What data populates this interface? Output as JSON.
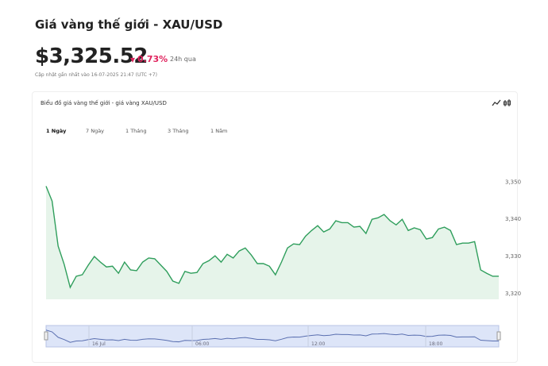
{
  "header": {
    "title": "Giá vàng thế giới - XAU/USD",
    "price": "$3,325.52",
    "change": "0.73%",
    "period": "24h qua",
    "updated": "Cập nhật gần nhất vào 16-07-2025 21:47 (UTC +7)"
  },
  "card": {
    "title": "Biểu đồ giá vàng thế giới - giá vàng XAU/USD",
    "tabs": [
      "1 Ngày",
      "7 Ngày",
      "1 Tháng",
      "3 Tháng",
      "1 Năm"
    ]
  },
  "chart_data": {
    "type": "area",
    "color": "#2f9e5c",
    "fill": "#e6f4ea",
    "values": [
      3348.9,
      3344.9,
      3332.8,
      3327.9,
      3321.7,
      3324.7,
      3325.1,
      3327.7,
      3330.0,
      3328.5,
      3327.2,
      3327.4,
      3325.5,
      3328.5,
      3326.4,
      3326.2,
      3328.5,
      3329.6,
      3329.4,
      3327.7,
      3326.0,
      3323.4,
      3322.8,
      3326.0,
      3325.5,
      3325.7,
      3328.1,
      3328.9,
      3330.2,
      3328.5,
      3330.6,
      3329.6,
      3331.5,
      3332.3,
      3330.4,
      3328.1,
      3328.1,
      3327.4,
      3325.1,
      3328.5,
      3332.3,
      3333.4,
      3333.2,
      3335.5,
      3337.0,
      3338.3,
      3336.6,
      3337.4,
      3339.6,
      3339.1,
      3339.1,
      3337.9,
      3338.1,
      3336.2,
      3340.0,
      3340.4,
      3341.3,
      3339.6,
      3338.5,
      3340.0,
      3337.0,
      3337.7,
      3337.2,
      3334.7,
      3335.1,
      3337.4,
      3337.9,
      3337.0,
      3333.2,
      3333.6,
      3333.6,
      3334.0,
      3326.4,
      3325.5,
      3324.7,
      3324.7
    ],
    "ylim": [
      3318.5,
      3352
    ],
    "yticks": [
      {
        "value": 3320,
        "label": "3,320"
      },
      {
        "value": 3330,
        "label": "3,330"
      },
      {
        "value": 3340,
        "label": "3,340"
      },
      {
        "value": 3350,
        "label": "3,350"
      }
    ]
  },
  "navigator": {
    "labels": [
      "16 Jul",
      "06:00",
      "12:00",
      "18:00"
    ]
  }
}
